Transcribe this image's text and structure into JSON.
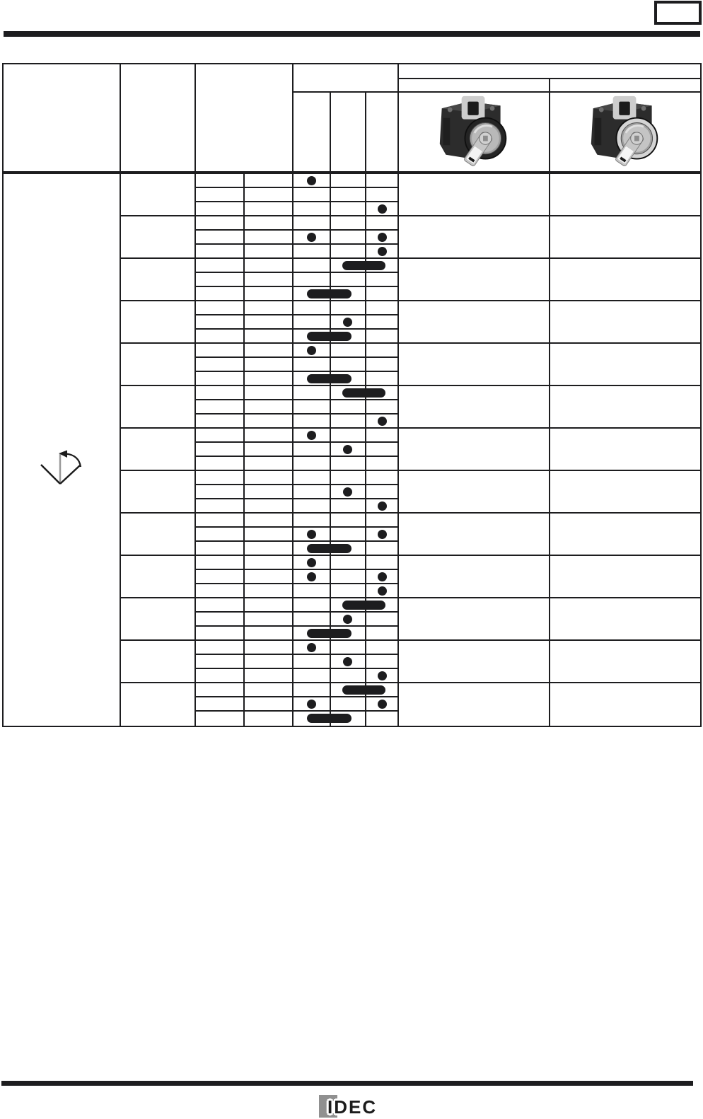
{
  "page": {
    "kind": "scanned-catalog-datasheet-page",
    "background": "#ffffff",
    "line_color": "#1d1d1f"
  },
  "header": {
    "page_number_box_text": "",
    "operator_column_label": "",
    "style_column_label": "",
    "circuit_column_label": "",
    "contact_position_labels": [
      "",
      "",
      ""
    ],
    "product_group_label": "",
    "product_subgroup_labels": [
      "",
      ""
    ]
  },
  "operator_symbol": {
    "type": "three-position-selector-with-return-arrow",
    "description": "V-shaped operator position diagram, gray center line, curved return arrow from right position to center"
  },
  "products": [
    {
      "name": "key-selector-switch-black-bezel",
      "bezel": "black",
      "bezel_color": "#242424",
      "face_color": "#b9b9b9",
      "block_color": "#2c2c2c",
      "key_color": "#c6c6c6"
    },
    {
      "name": "key-selector-switch-metal-bezel",
      "bezel": "metallic",
      "bezel_color": "#d4d4d4",
      "face_color": "#c4c4c4",
      "block_color": "#2c2c2c",
      "key_color": "#c6c6c6"
    }
  ],
  "chart_data": {
    "type": "table",
    "title": "",
    "columns": [
      "left",
      "center",
      "right"
    ],
    "notation": {
      "L": "dot in left position column",
      "C": "dot in center position column",
      "R": "dot in right position column",
      "LC": "rounded bar spanning left-center columns",
      "CR": "rounded bar spanning center-right columns"
    },
    "groups": [
      {
        "rows": [
          [
            "L"
          ],
          [],
          [
            "R"
          ]
        ]
      },
      {
        "rows": [
          [],
          [
            "L",
            "R"
          ],
          [
            "R"
          ]
        ]
      },
      {
        "rows": [
          [
            "CR"
          ],
          [],
          [
            "LC"
          ]
        ]
      },
      {
        "rows": [
          [],
          [
            "C"
          ],
          [
            "LC"
          ]
        ]
      },
      {
        "rows": [
          [
            "L"
          ],
          [],
          [
            "LC"
          ]
        ]
      },
      {
        "rows": [
          [
            "CR"
          ],
          [],
          [
            "R"
          ]
        ]
      },
      {
        "rows": [
          [
            "L"
          ],
          [
            "C"
          ],
          []
        ]
      },
      {
        "rows": [
          [],
          [
            "C"
          ],
          [
            "R"
          ]
        ]
      },
      {
        "rows": [
          [],
          [
            "L",
            "R"
          ],
          [
            "LC"
          ]
        ]
      },
      {
        "rows": [
          [
            "L"
          ],
          [
            "L",
            "R"
          ],
          [
            "R"
          ]
        ]
      },
      {
        "rows": [
          [
            "CR"
          ],
          [
            "C"
          ],
          [
            "LC"
          ]
        ]
      },
      {
        "rows": [
          [
            "L"
          ],
          [
            "C"
          ],
          [
            "R"
          ]
        ]
      },
      {
        "rows": [
          [
            "CR"
          ],
          [
            "L",
            "R"
          ],
          [
            "LC"
          ]
        ]
      }
    ],
    "mark_color": "#1d1d1f"
  },
  "footer": {
    "logo_text": "IDEC",
    "logo_square_color": "#909090"
  }
}
